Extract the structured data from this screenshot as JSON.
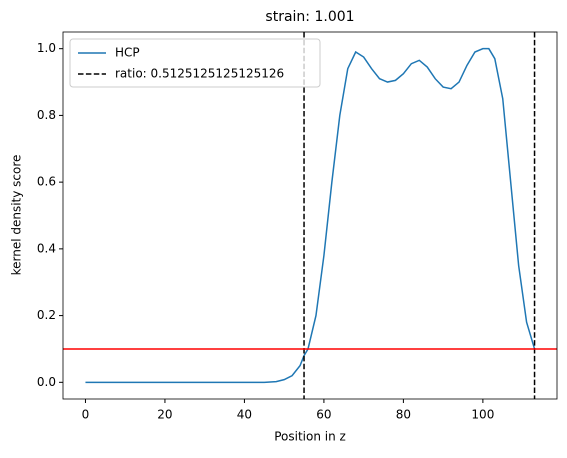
{
  "chart_data": {
    "type": "line",
    "title": "strain: 1.001",
    "xlabel": "Position in z",
    "ylabel": "kernel density score",
    "x": [
      0,
      10,
      20,
      30,
      40,
      45,
      48,
      50,
      52,
      54,
      55,
      56,
      58,
      60,
      62,
      64,
      66,
      68,
      70,
      72,
      74,
      76,
      78,
      80,
      82,
      84,
      86,
      88,
      90,
      92,
      94,
      96,
      98,
      100,
      101.5,
      103,
      105,
      107,
      109,
      111,
      113
    ],
    "series": [
      {
        "name": "HCP",
        "color": "#1f77b4",
        "values": [
          0,
          0,
          0,
          0,
          0,
          0,
          0.002,
          0.008,
          0.02,
          0.05,
          0.08,
          0.1,
          0.2,
          0.38,
          0.6,
          0.8,
          0.94,
          0.99,
          0.975,
          0.94,
          0.91,
          0.9,
          0.905,
          0.925,
          0.955,
          0.965,
          0.945,
          0.91,
          0.885,
          0.88,
          0.9,
          0.95,
          0.99,
          1.0,
          1.0,
          0.97,
          0.85,
          0.6,
          0.35,
          0.18,
          0.1
        ]
      }
    ],
    "vlines": {
      "name": "ratio: 0.5125125125125126",
      "color": "#000000",
      "values": [
        55,
        113
      ]
    },
    "hline": {
      "value": 0.1,
      "color": "#ff0000"
    },
    "xlim": [
      -5.65,
      118.65
    ],
    "ylim": [
      -0.05,
      1.05
    ],
    "xticks": [
      0,
      20,
      40,
      60,
      80,
      100
    ],
    "yticks": [
      {
        "value": 0,
        "label": "0.0"
      },
      {
        "value": 0.2,
        "label": "0.2"
      },
      {
        "value": 0.4,
        "label": "0.4"
      },
      {
        "value": 0.6,
        "label": "0.6"
      },
      {
        "value": 0.8,
        "label": "0.8"
      },
      {
        "value": 1.0,
        "label": "1.0"
      }
    ],
    "legend": "upper left"
  }
}
